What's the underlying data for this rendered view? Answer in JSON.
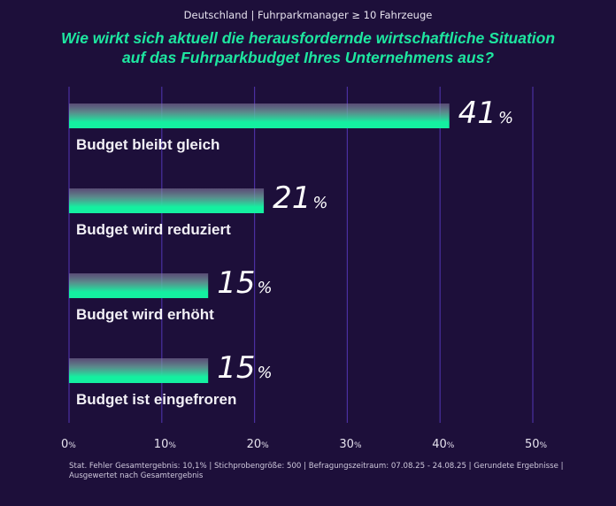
{
  "header": {
    "subtitle": "Deutschland | Fuhrparkmanager ≥ 10 Fahrzeuge",
    "title_line1": "Wie wirkt sich aktuell die herausfordernde wirtschaftliche Situation",
    "title_line2": "auf das Fuhrparkbudget Ihres Unternehmens aus?"
  },
  "colors": {
    "background": "#1d0f3a",
    "bar_bottom": "#14f0a0",
    "bar_top": "#8a7fa6",
    "gridline": "#4a2fa0",
    "title": "#1ee6a0"
  },
  "chart_data": {
    "type": "bar",
    "orientation": "horizontal",
    "title": "Wie wirkt sich aktuell die herausfordernde wirtschaftliche Situation auf das Fuhrparkbudget Ihres Unternehmens aus?",
    "subtitle": "Deutschland | Fuhrparkmanager ≥ 10 Fahrzeuge",
    "categories": [
      "Budget bleibt gleich",
      "Budget wird reduziert",
      "Budget wird erhöht",
      "Budget ist eingefroren"
    ],
    "values": [
      41,
      21,
      15,
      15
    ],
    "value_suffix": "%",
    "xlabel": "",
    "ylabel": "",
    "xlim": [
      0,
      50
    ],
    "xticks": [
      0,
      10,
      20,
      30,
      40,
      50
    ],
    "tick_suffix": "%",
    "grid": true,
    "legend": "none"
  },
  "footnote": {
    "line1": "Stat. Fehler Gesamtergebnis: 10,1% | Stichprobengröße: 500 | Befragungszeitraum: 07.08.25 - 24.08.25 | Gerundete Ergebnisse |",
    "line2": "Ausgewertet nach Gesamtergebnis"
  }
}
